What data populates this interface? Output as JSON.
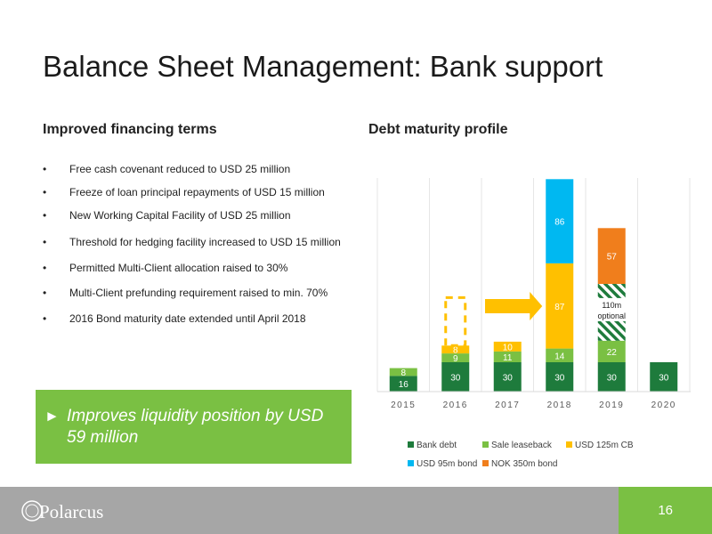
{
  "title": "Balance Sheet Management: Bank support",
  "left_heading": "Improved financing terms",
  "right_heading": "Debt maturity profile",
  "bullets": [
    "Free cash covenant reduced to USD 25 million",
    "Freeze of loan principal repayments of USD 15 million",
    "New Working Capital Facility of USD 25 million",
    "Threshold for hedging facility increased to USD 15 million",
    "Permitted Multi-Client allocation raised to 30%",
    "Multi-Client prefunding requirement raised to min. 70%",
    "2016 Bond maturity date extended until April 2018"
  ],
  "bullet_symbol": "•",
  "callout": {
    "arrow": "►",
    "text": "Improves liquidity position by USD 59 million"
  },
  "footer": {
    "logo_text": "Polarcus",
    "page_number": "16"
  },
  "colors": {
    "bank_debt": "#1e7b3c",
    "sale_leaseback": "#7ac043",
    "cb": "#ffc000",
    "usd_bond": "#00b8f1",
    "nok_bond": "#f07e1c",
    "accent_green": "#7ac043",
    "footer_grey": "#a6a6a6"
  },
  "chart_data": {
    "type": "bar",
    "stacked": true,
    "categories": [
      "2015",
      "2016",
      "2017",
      "2018",
      "2019",
      "2020"
    ],
    "series": [
      {
        "name": "Bank debt",
        "values": [
          16,
          30,
          30,
          30,
          30,
          30
        ]
      },
      {
        "name": "Sale leaseback",
        "values": [
          8,
          9,
          11,
          14,
          22,
          0
        ]
      },
      {
        "name": "USD 125m CB",
        "values": [
          0,
          8,
          10,
          87,
          0,
          0
        ]
      },
      {
        "name": "USD 95m bond",
        "values": [
          0,
          0,
          0,
          86,
          0,
          0
        ]
      },
      {
        "name": "NOK 350m bond",
        "values": [
          0,
          0,
          0,
          0,
          57,
          0
        ]
      }
    ],
    "annotations": {
      "optional_2019": {
        "category": "2019",
        "value": 110,
        "label_line1": "110m",
        "label_line2": "optional"
      },
      "moved_2016": {
        "category": "2016",
        "value": 96,
        "style": "dashed outline",
        "target": "2018"
      }
    },
    "legend": [
      "Bank debt",
      "Sale leaseback",
      "USD 125m CB",
      "USD 95m bond",
      "NOK 350m bond"
    ],
    "legend_position": "bottom",
    "grid": "vertical"
  }
}
